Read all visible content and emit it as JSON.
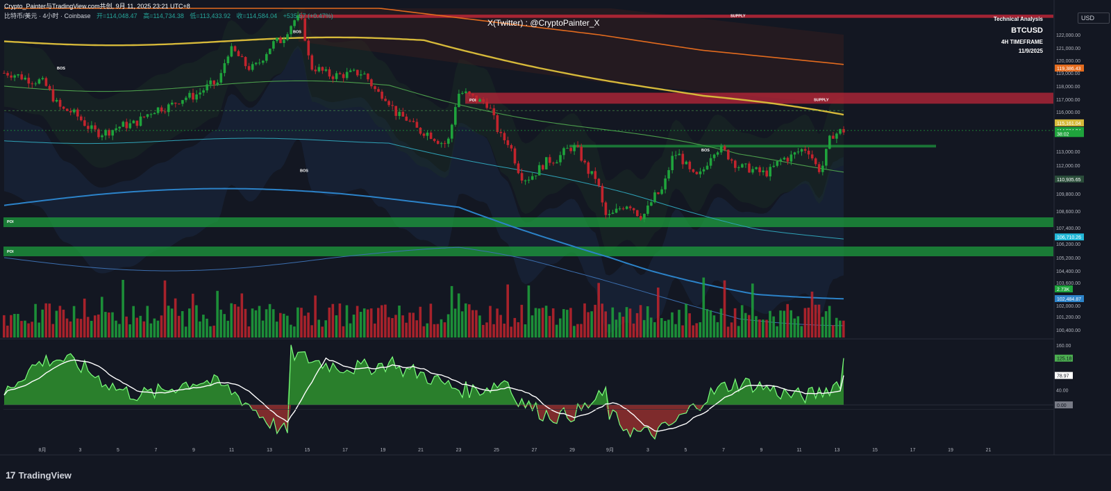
{
  "header": {
    "source_line": "Crypto_Painter与TradingView.com共创, 9月 11, 2025 23:21 UTC+8",
    "symbol_line": "比特币/美元 · 4小时 · Coinbase",
    "ohlc": [
      "开=114,048.47",
      "高=114,734.38",
      "低=113,433.92",
      "收=114,584.04",
      "+535.57 (+0.47%)"
    ]
  },
  "watermark": "X(Twitter) : @CryptoPainter_X",
  "info_box": {
    "title": "Technical Analysis",
    "symbol": "BTCUSD",
    "timeframe": "4H TIMEFRAME",
    "date": "11/9/2025"
  },
  "currency_button": "USD",
  "brand": {
    "logo": "17",
    "name": "TradingView"
  },
  "colors": {
    "background": "#131722",
    "up": "#26a69a",
    "candle_up": "#1fa33c",
    "candle_down": "#c2242d",
    "yellow_line": "#d6b93a",
    "orange_line": "#e36b1e",
    "blue_line": "#2c83c9",
    "cyan_line": "#2fa3b8",
    "green_line": "#4c9e4c",
    "supply": "#c8283a",
    "poi": "#1e9e3e"
  },
  "chart_data": [
    {
      "type": "candlestick",
      "name": "BTCUSD 4H",
      "y_axis": {
        "ticks": [
          "122,000.00",
          "121,000.00",
          "120,000.00",
          "119,000.00",
          "118,000.00",
          "117,000.00",
          "116,000.00",
          "113,000.00",
          "112,000.00",
          "109,800.00",
          "108,600.00",
          "107,400.00",
          "106,200.00",
          "105,200.00",
          "104,400.00",
          "103,600.00",
          "102,000.00",
          "101,200.00",
          "100,400.00"
        ],
        "tick_values": [
          122000,
          121000,
          120000,
          119000,
          118000,
          117000,
          116000,
          113000,
          112000,
          109800,
          108600,
          107400,
          106200,
          105200,
          104400,
          103600,
          102000,
          101200,
          100400
        ]
      },
      "x_axis": {
        "ticks": [
          "8月",
          "3",
          "5",
          "7",
          "9",
          "11",
          "13",
          "15",
          "17",
          "19",
          "21",
          "23",
          "25",
          "27",
          "29",
          "9月",
          "3",
          "5",
          "7",
          "9",
          "11",
          "13",
          "15",
          "17",
          "19",
          "21"
        ]
      },
      "price_labels": [
        {
          "text": "119,386.43",
          "color": "#e36b1e",
          "value": 119386.43
        },
        {
          "text": "115,161.04",
          "color": "#d6b93a",
          "value": 115161.04
        },
        {
          "text": "114,584.04",
          "color": "#1fa33c",
          "value": 114584.04
        },
        {
          "text": "38:02",
          "color": "#1fa33c",
          "value": 114350
        },
        {
          "text": "110,935.65",
          "color": "#2a4d3a",
          "value": 110935.65
        },
        {
          "text": "106,710.26",
          "color": "#22b8d8",
          "value": 106710.26
        },
        {
          "text": "102,484.87",
          "color": "#2c83c9",
          "value": 102484.87
        }
      ],
      "volume_label": {
        "text": "2.73K",
        "color": "#1fa33c"
      },
      "annotations": [
        {
          "text": "BOS",
          "value": 119400
        },
        {
          "text": "BOS",
          "value": 122300
        },
        {
          "text": "BOS",
          "value": 111600
        },
        {
          "text": "BOS",
          "value": 113100
        },
        {
          "text": "POI",
          "value": 107850
        },
        {
          "text": "POI",
          "value": 105650
        },
        {
          "text": "POI",
          "value": 116950
        },
        {
          "text": "SUPPLY",
          "value": 116970
        },
        {
          "text": "SUPPLY",
          "value": 123800
        }
      ],
      "zones": [
        {
          "name": "supply",
          "from": 116650,
          "to": 117500
        },
        {
          "name": "supply-top",
          "from": 123600,
          "to": 123900
        },
        {
          "name": "poi-1",
          "from": 107450,
          "to": 108150
        },
        {
          "name": "poi-2",
          "from": 105300,
          "to": 106000
        },
        {
          "name": "resistance",
          "from": 113300,
          "to": 113500
        }
      ],
      "key_levels": {
        "start_close": 119000,
        "high": 123600,
        "low": 107300,
        "last": 114584.04
      }
    },
    {
      "type": "area",
      "name": "oscillator",
      "y_axis": {
        "ticks": [
          "160.00",
          "40.00",
          "0.00"
        ],
        "tick_values": [
          160,
          40,
          0
        ]
      },
      "labels": [
        {
          "text": "125.18",
          "color": "#4caf50",
          "value": 125.18
        },
        {
          "text": "78.97",
          "color": "#ffffff",
          "value": 78.97
        },
        {
          "text": "0.00",
          "color": "#787b86",
          "value": 0
        }
      ],
      "last_value": 125.18,
      "signal_last": 78.97
    }
  ]
}
